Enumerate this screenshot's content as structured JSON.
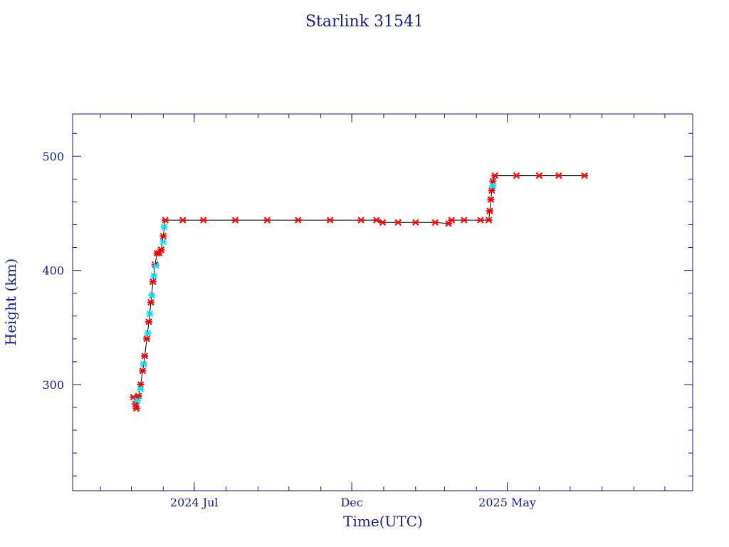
{
  "chart_data": {
    "type": "scatter",
    "title": "Starlink 31541",
    "xlabel": "Time(UTC)",
    "ylabel": "Height (km)",
    "x_tick_labels": [
      {
        "date": "2024-07-01",
        "label": "2024 Jul"
      },
      {
        "date": "2024-12-01",
        "label": "Dec"
      },
      {
        "date": "2025-05-01",
        "label": "2025 May"
      }
    ],
    "y_ticks": [
      300,
      400,
      500
    ],
    "xlim": [
      "2024-03-05",
      "2025-10-28"
    ],
    "ylim": [
      207,
      537
    ],
    "grid": false,
    "legend": "none",
    "colors": {
      "axis": "#1a1a8c",
      "primary_points": "#ff0000",
      "secondary_points": "#00e5ff",
      "line": "#000000"
    },
    "series": [
      {
        "values": [
          [
            "2024-05-03",
            289
          ],
          [
            "2024-05-05",
            283
          ],
          [
            "2024-05-06",
            279
          ],
          [
            "2024-05-08",
            290
          ],
          [
            "2024-05-10",
            300
          ],
          [
            "2024-05-12",
            312
          ],
          [
            "2024-05-14",
            325
          ],
          [
            "2024-05-16",
            340
          ],
          [
            "2024-05-18",
            355
          ],
          [
            "2024-05-20",
            372
          ],
          [
            "2024-05-22",
            390
          ],
          [
            "2024-05-24",
            405
          ],
          [
            "2024-05-26",
            415
          ],
          [
            "2024-05-28",
            415
          ],
          [
            "2024-05-30",
            418
          ],
          [
            "2024-06-01",
            430
          ],
          [
            "2024-06-03",
            444
          ],
          [
            "2024-06-20",
            444
          ],
          [
            "2024-07-10",
            444
          ],
          [
            "2024-08-10",
            444
          ],
          [
            "2024-09-10",
            444
          ],
          [
            "2024-10-10",
            444
          ],
          [
            "2024-11-10",
            444
          ],
          [
            "2024-12-10",
            444
          ],
          [
            "2024-12-25",
            444
          ],
          [
            "2024-12-31",
            442
          ],
          [
            "2025-01-15",
            442
          ],
          [
            "2025-02-01",
            442
          ],
          [
            "2025-02-20",
            442
          ],
          [
            "2025-03-05",
            441
          ],
          [
            "2025-03-08",
            444
          ],
          [
            "2025-03-20",
            444
          ],
          [
            "2025-04-05",
            444
          ],
          [
            "2025-04-13",
            444
          ],
          [
            "2025-04-14",
            452
          ],
          [
            "2025-04-15",
            462
          ],
          [
            "2025-04-16",
            470
          ],
          [
            "2025-04-17",
            478
          ],
          [
            "2025-04-19",
            483
          ],
          [
            "2025-05-10",
            483
          ],
          [
            "2025-06-01",
            483
          ],
          [
            "2025-06-20",
            483
          ],
          [
            "2025-07-15",
            483
          ]
        ]
      },
      {
        "values": [
          [
            "2024-05-07",
            286
          ],
          [
            "2024-05-10",
            296
          ],
          [
            "2024-05-13",
            318
          ],
          [
            "2024-05-17",
            345
          ],
          [
            "2024-05-19",
            362
          ],
          [
            "2024-05-21",
            378
          ],
          [
            "2024-05-23",
            395
          ],
          [
            "2024-05-25",
            404
          ],
          [
            "2024-06-01",
            425
          ],
          [
            "2024-06-02",
            438
          ],
          [
            "2025-04-17",
            474
          ]
        ]
      }
    ]
  }
}
